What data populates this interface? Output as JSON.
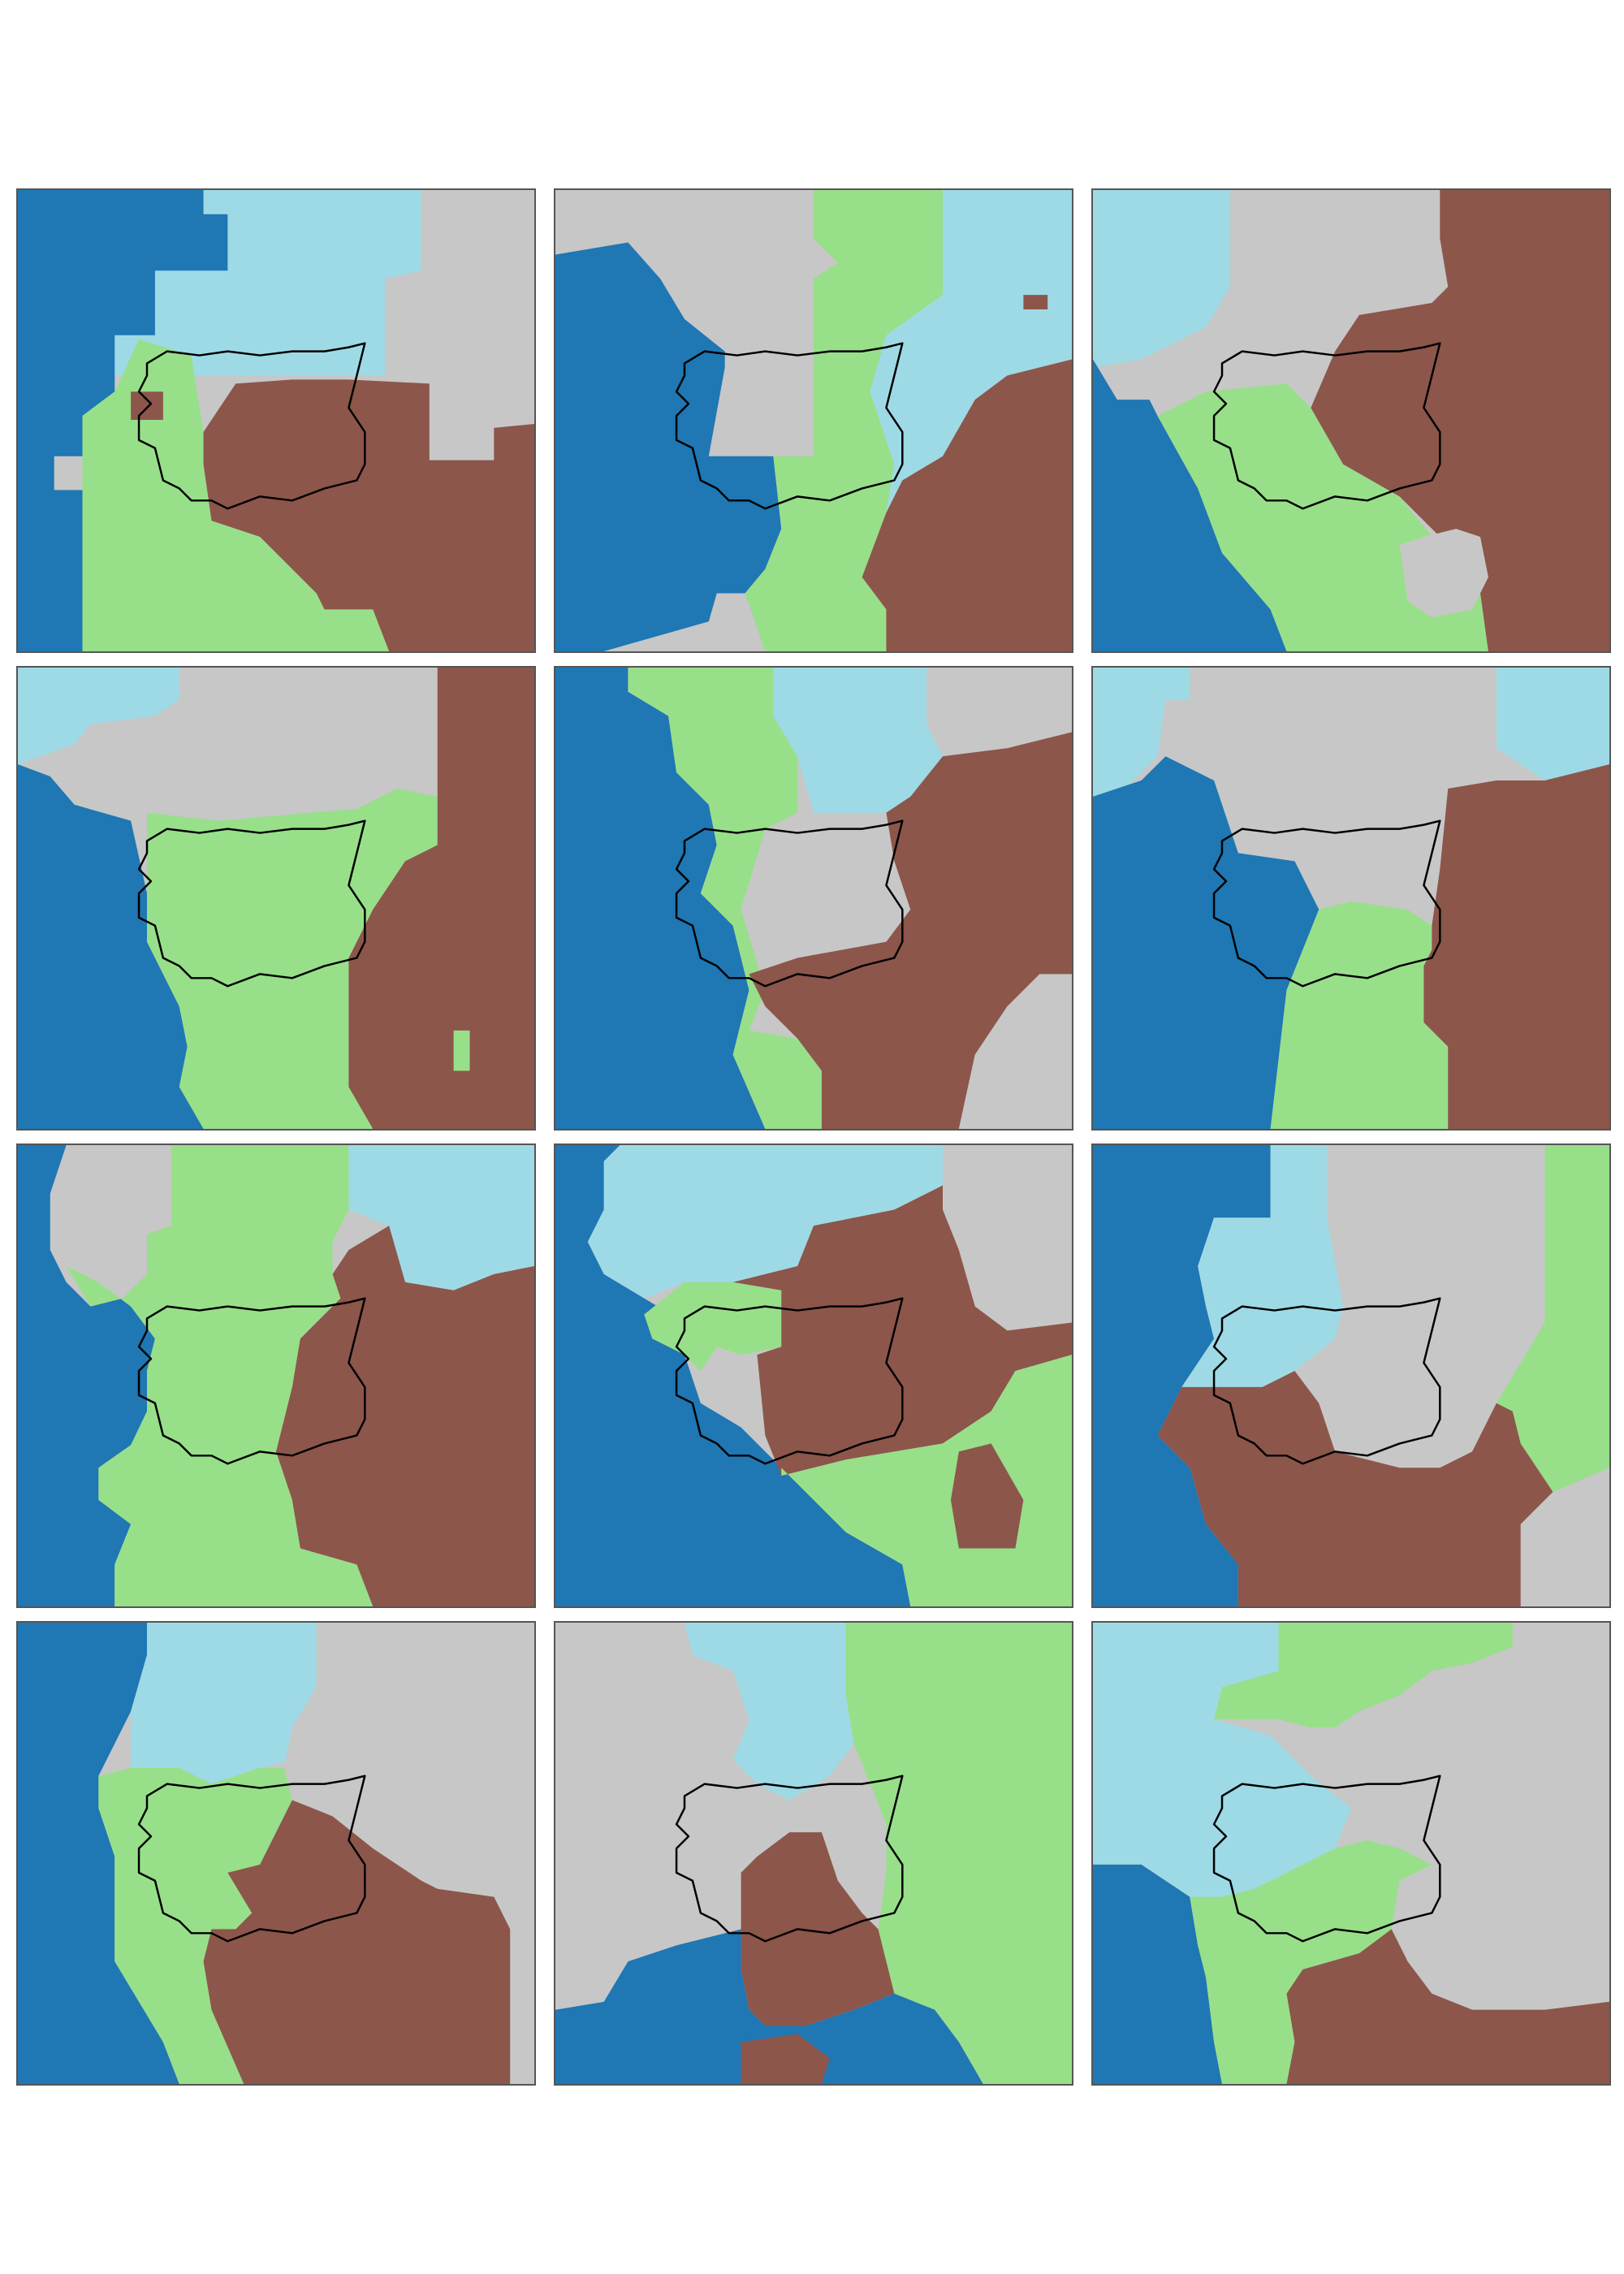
{
  "figure": {
    "layout": {
      "rows": 4,
      "columns": 3
    },
    "colors": {
      "dark_blue": "#1f77b4",
      "light_blue": "#9edae5",
      "green": "#98df8a",
      "brown": "#8c564b",
      "gray": "#c7c7c7",
      "outline": "#000000"
    },
    "panels": [
      {
        "id": 1,
        "background": "gray"
      },
      {
        "id": 2,
        "background": "gray"
      },
      {
        "id": 3,
        "background": "gray"
      },
      {
        "id": 4,
        "background": "gray"
      },
      {
        "id": 5,
        "background": "gray"
      },
      {
        "id": 6,
        "background": "gray"
      },
      {
        "id": 7,
        "background": "gray"
      },
      {
        "id": 8,
        "background": "gray"
      },
      {
        "id": 9,
        "background": "gray"
      },
      {
        "id": 10,
        "background": "gray"
      },
      {
        "id": 11,
        "background": "gray"
      },
      {
        "id": 12,
        "background": "gray"
      }
    ]
  }
}
